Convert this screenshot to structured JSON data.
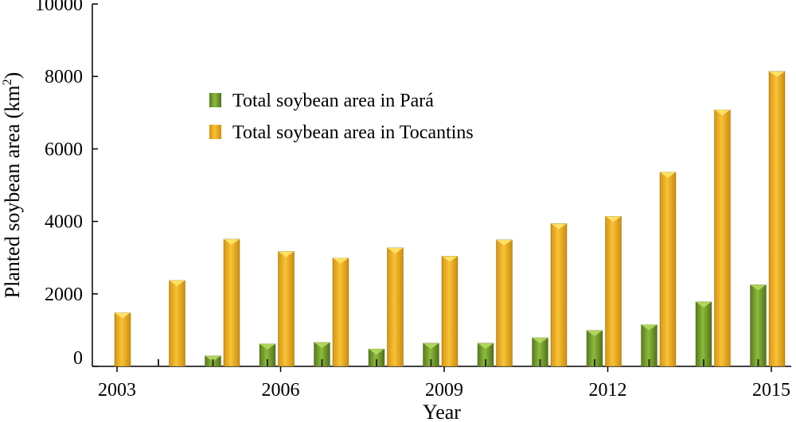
{
  "chart_data": {
    "type": "bar",
    "title": "",
    "xlabel": "Year",
    "ylabel_prefix": "Planted soybean area (km",
    "ylabel_sup": "2",
    "ylabel_suffix": ")",
    "ylim": [
      0,
      10000
    ],
    "yticks": [
      "0",
      "2000",
      "4000",
      "6000",
      "8000",
      "10000"
    ],
    "xtick_labels": [
      "2003",
      "2006",
      "2009",
      "2012",
      "2015"
    ],
    "xtick_years": [
      2003,
      2006,
      2009,
      2012,
      2015
    ],
    "categories": [
      2003,
      2004,
      2005,
      2006,
      2007,
      2008,
      2009,
      2010,
      2011,
      2012,
      2013,
      2014,
      2015
    ],
    "legend_position": "upper-left-center",
    "grid": false,
    "series": [
      {
        "name": "Total soybean area in Pará",
        "color": "#6E9A2A",
        "values": [
          0,
          290,
          620,
          660,
          480,
          640,
          640,
          790,
          990,
          1150,
          1780,
          2250,
          3200
        ]
      },
      {
        "name": "Total soybean area in Tocantins",
        "color": "#F0B020",
        "values": [
          1480,
          2370,
          3510,
          3170,
          2990,
          3270,
          3040,
          3490,
          3940,
          4140,
          5360,
          7080,
          8140
        ]
      }
    ]
  }
}
